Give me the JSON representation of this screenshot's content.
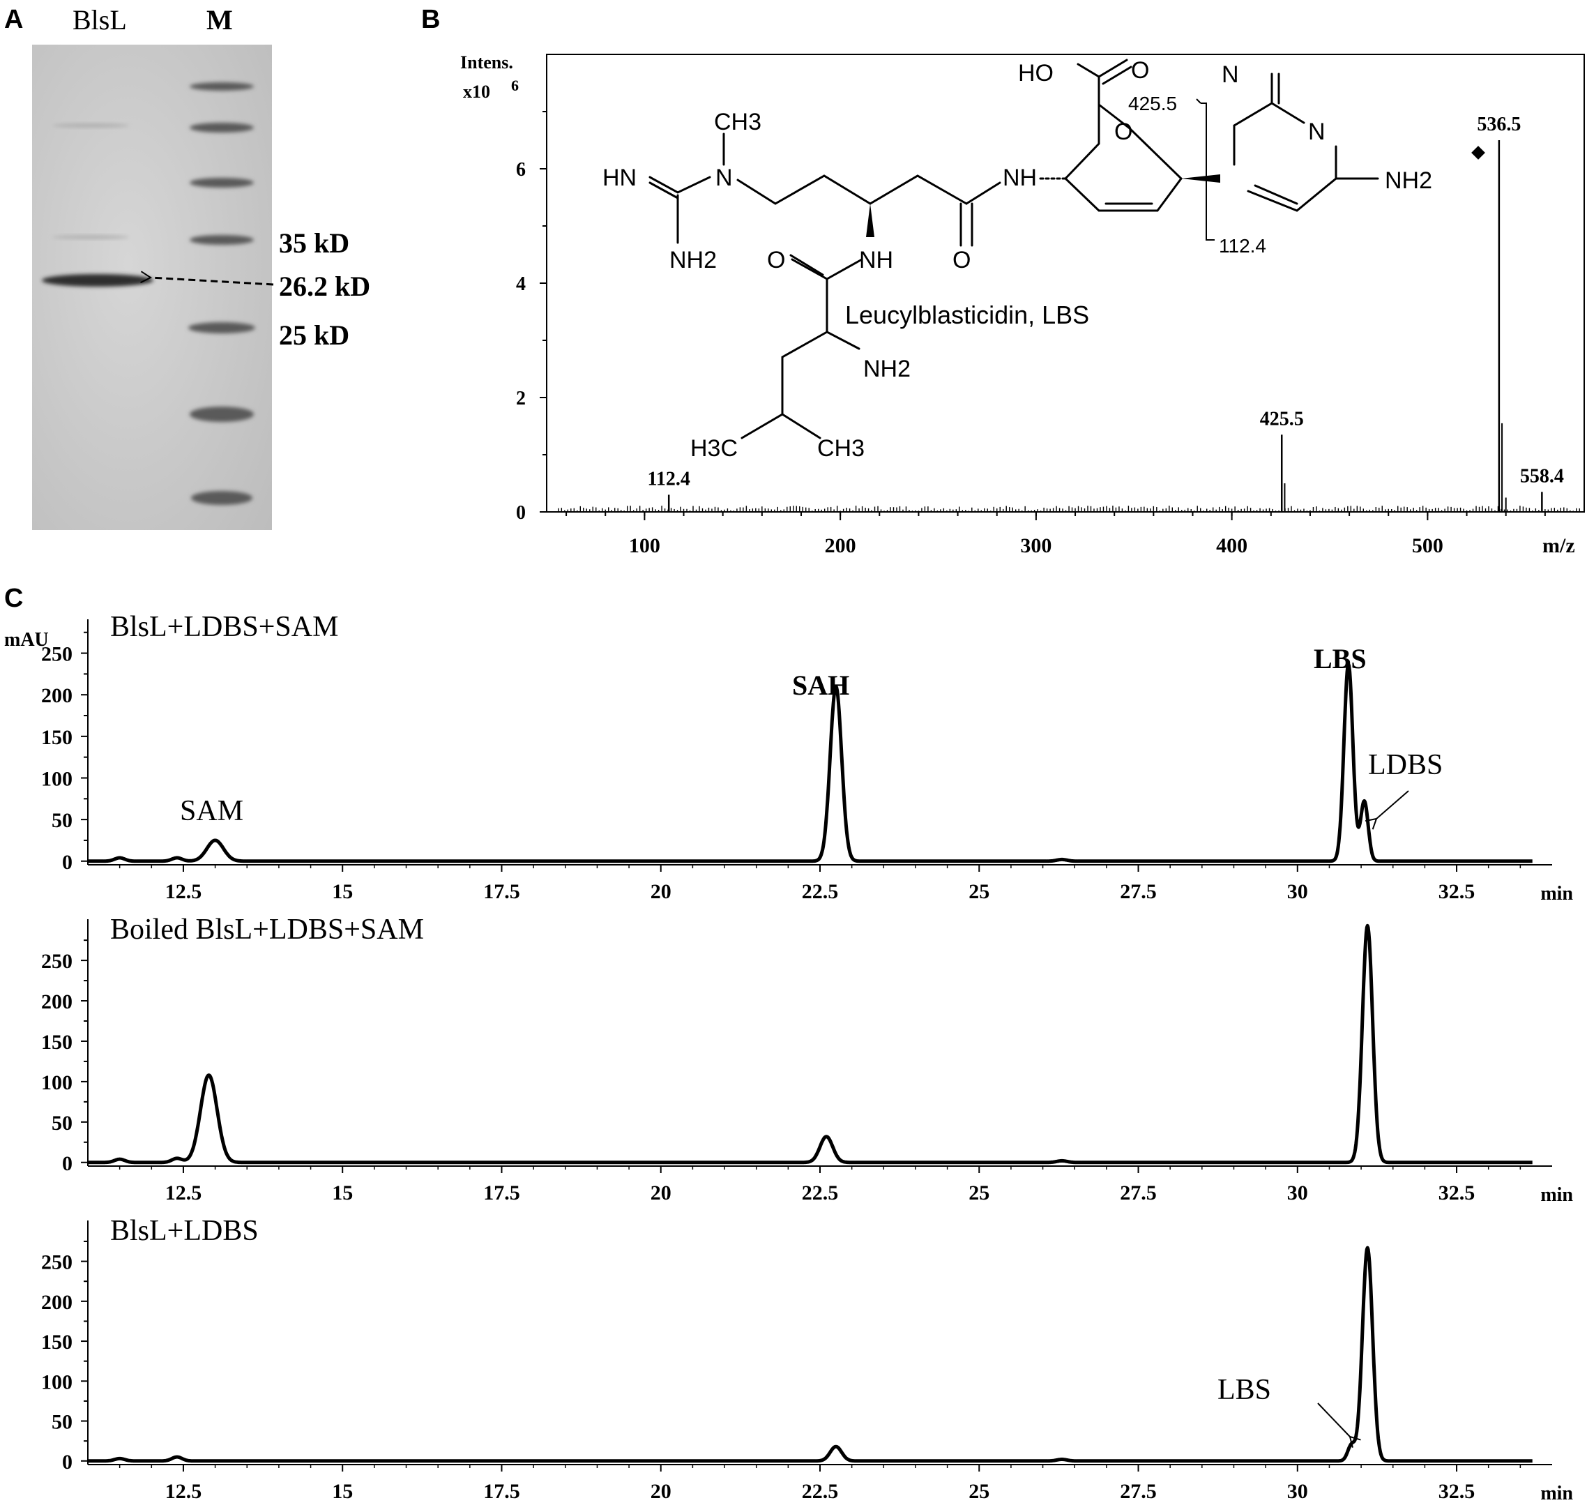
{
  "panel_a": {
    "label": "A",
    "lane_labels": [
      "BlsL",
      "M"
    ],
    "marker_labels": [
      "35 kD",
      "26.2 kD",
      "25 kD"
    ]
  },
  "panel_b": {
    "label": "B",
    "y_label_line1": "Intens.",
    "y_label_line2": "x10",
    "y_label_exp": "6",
    "x_label": "m/z",
    "compound_label": "Leucylblasticidin, LBS",
    "fragment_labels": [
      "425.5",
      "112.4"
    ],
    "structure_atoms": [
      "HO",
      "O",
      "O",
      "N",
      "O",
      "N",
      "NH2",
      "CH3",
      "HN",
      "N",
      "NH2",
      "NH",
      "NH",
      "O",
      "O",
      "NH2",
      "H3C",
      "CH3"
    ]
  },
  "panel_c": {
    "label": "C",
    "y_unit": "mAU",
    "x_unit": "min",
    "peak_labels": {
      "sam": "SAM",
      "sah": "SAH",
      "lbs": "LBS",
      "ldbs": "LDBS",
      "lbs_bottom": "LBS"
    }
  },
  "chart_data": [
    {
      "type": "bar",
      "title": "",
      "xlabel": "m/z",
      "ylabel": "Intens. x10^6",
      "xlim": [
        50,
        580
      ],
      "ylim": [
        0,
        8
      ],
      "x_ticks": [
        100,
        200,
        300,
        400,
        500
      ],
      "y_ticks": [
        0,
        2,
        4,
        6
      ],
      "peaks": [
        {
          "x": 112.4,
          "y": 0.3,
          "label": "112.4"
        },
        {
          "x": 425.5,
          "y": 1.35,
          "label": "425.5"
        },
        {
          "x": 536.5,
          "y": 6.5,
          "label": "536.5"
        },
        {
          "x": 558.4,
          "y": 0.35,
          "label": "558.4"
        }
      ]
    },
    {
      "type": "line",
      "title": "BlsL+LDBS+SAM",
      "xlabel": "min",
      "ylabel": "mAU",
      "xlim": [
        11,
        34
      ],
      "ylim": [
        0,
        280
      ],
      "x_ticks": [
        12.5,
        15,
        17.5,
        20,
        22.5,
        25,
        27.5,
        30,
        32.5
      ],
      "y_ticks": [
        0,
        50,
        100,
        150,
        200,
        250
      ],
      "peaks": [
        {
          "x": 11.5,
          "y": 4,
          "w": 0.08
        },
        {
          "x": 12.4,
          "y": 4,
          "w": 0.08
        },
        {
          "x": 13.0,
          "y": 25,
          "w": 0.13
        },
        {
          "x": 22.75,
          "y": 210,
          "w": 0.09
        },
        {
          "x": 26.3,
          "y": 2,
          "w": 0.08
        },
        {
          "x": 30.8,
          "y": 237,
          "w": 0.07
        },
        {
          "x": 31.05,
          "y": 72,
          "w": 0.06
        }
      ]
    },
    {
      "type": "line",
      "title": "Boiled  BlsL+LDBS+SAM",
      "xlabel": "min",
      "ylabel": "",
      "xlim": [
        11,
        34
      ],
      "ylim": [
        0,
        290
      ],
      "x_ticks": [
        12.5,
        15,
        17.5,
        20,
        22.5,
        25,
        27.5,
        30,
        32.5
      ],
      "y_ticks": [
        0,
        50,
        100,
        150,
        200,
        250
      ],
      "peaks": [
        {
          "x": 11.5,
          "y": 4,
          "w": 0.08
        },
        {
          "x": 12.4,
          "y": 5,
          "w": 0.08
        },
        {
          "x": 12.9,
          "y": 108,
          "w": 0.13
        },
        {
          "x": 22.6,
          "y": 32,
          "w": 0.1
        },
        {
          "x": 26.3,
          "y": 2,
          "w": 0.08
        },
        {
          "x": 31.1,
          "y": 293,
          "w": 0.08
        }
      ]
    },
    {
      "type": "line",
      "title": "BlsL+LDBS",
      "xlabel": "min",
      "ylabel": "",
      "xlim": [
        11,
        34
      ],
      "ylim": [
        0,
        290
      ],
      "x_ticks": [
        12.5,
        15,
        17.5,
        20,
        22.5,
        25,
        27.5,
        30,
        32.5
      ],
      "y_ticks": [
        0,
        50,
        100,
        150,
        200,
        250
      ],
      "peaks": [
        {
          "x": 11.5,
          "y": 3,
          "w": 0.08
        },
        {
          "x": 12.4,
          "y": 5,
          "w": 0.08
        },
        {
          "x": 22.75,
          "y": 18,
          "w": 0.09
        },
        {
          "x": 26.3,
          "y": 2,
          "w": 0.08
        },
        {
          "x": 30.85,
          "y": 20,
          "w": 0.06
        },
        {
          "x": 31.1,
          "y": 267,
          "w": 0.08
        }
      ]
    }
  ]
}
